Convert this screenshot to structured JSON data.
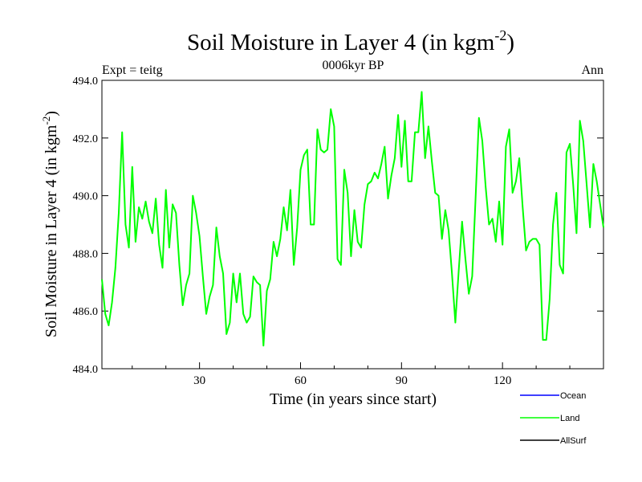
{
  "chart_data": {
    "type": "line",
    "title_main": "Soil Moisture in Layer 4 (in kgm",
    "title_sup": "-2",
    "title_close": ")",
    "subtitle_left": "Expt = teitg",
    "subtitle_center": "0006kyr BP",
    "subtitle_right": "Ann",
    "xlabel": "Time (in years since start)",
    "ylabel_main": "Soil Moisture in Layer 4 (in kgm",
    "ylabel_sup": "-2",
    "ylabel_close": ")",
    "xlim": [
      1,
      150
    ],
    "ylim": [
      484,
      494
    ],
    "x_ticks": [
      {
        "value": 30,
        "label": "30"
      },
      {
        "value": 60,
        "label": "60"
      },
      {
        "value": 90,
        "label": "90"
      },
      {
        "value": 120,
        "label": "120"
      }
    ],
    "y_ticks": [
      {
        "value": 484,
        "label": "484.0"
      },
      {
        "value": 486,
        "label": "486.0"
      },
      {
        "value": 488,
        "label": "488.0"
      },
      {
        "value": 490,
        "label": "490.0"
      },
      {
        "value": 492,
        "label": "492.0"
      },
      {
        "value": 494,
        "label": "494.0"
      }
    ],
    "legend": [
      {
        "name": "Ocean",
        "color": "#0000ff"
      },
      {
        "name": "Land",
        "color": "#00ff00"
      },
      {
        "name": "AllSurf",
        "color": "#000000"
      }
    ],
    "series": [
      {
        "name": "Land",
        "color": "#00ff00",
        "x_start": 1,
        "values": [
          487.1,
          485.9,
          485.5,
          486.3,
          487.5,
          489.4,
          492.2,
          489.0,
          488.2,
          491.0,
          488.4,
          489.6,
          489.2,
          489.8,
          489.1,
          488.7,
          489.9,
          488.3,
          487.5,
          490.2,
          488.2,
          489.7,
          489.4,
          487.6,
          486.2,
          486.9,
          487.3,
          490.0,
          489.4,
          488.6,
          487.2,
          485.9,
          486.5,
          486.9,
          488.9,
          487.9,
          487.3,
          485.2,
          485.6,
          487.3,
          486.3,
          487.3,
          485.9,
          485.6,
          485.8,
          487.2,
          487.0,
          486.9,
          484.8,
          486.7,
          487.1,
          488.4,
          487.9,
          488.5,
          489.6,
          488.8,
          490.2,
          487.6,
          488.9,
          490.9,
          491.4,
          491.6,
          489.0,
          489.0,
          492.3,
          491.6,
          491.5,
          491.6,
          493.0,
          492.4,
          487.8,
          487.6,
          490.9,
          490.1,
          487.9,
          489.5,
          488.4,
          488.2,
          489.7,
          490.4,
          490.5,
          490.8,
          490.6,
          491.1,
          491.7,
          489.9,
          490.7,
          491.3,
          492.8,
          491.0,
          492.6,
          490.5,
          490.5,
          492.2,
          492.2,
          493.6,
          491.3,
          492.4,
          491.2,
          490.1,
          490.0,
          488.5,
          489.5,
          488.8,
          487.3,
          485.6,
          487.4,
          489.1,
          487.8,
          486.6,
          487.2,
          489.9,
          492.7,
          491.9,
          490.3,
          489.0,
          489.2,
          488.4,
          489.8,
          488.3,
          491.7,
          492.3,
          490.1,
          490.5,
          491.3,
          489.6,
          488.1,
          488.4,
          488.5,
          488.5,
          488.3,
          485.0,
          485.0,
          486.4,
          489.0,
          490.1,
          487.6,
          487.3,
          491.5,
          491.8,
          490.4,
          488.7,
          492.6,
          491.9,
          490.4,
          488.9,
          491.1,
          490.5,
          489.7,
          488.9
        ]
      }
    ]
  }
}
